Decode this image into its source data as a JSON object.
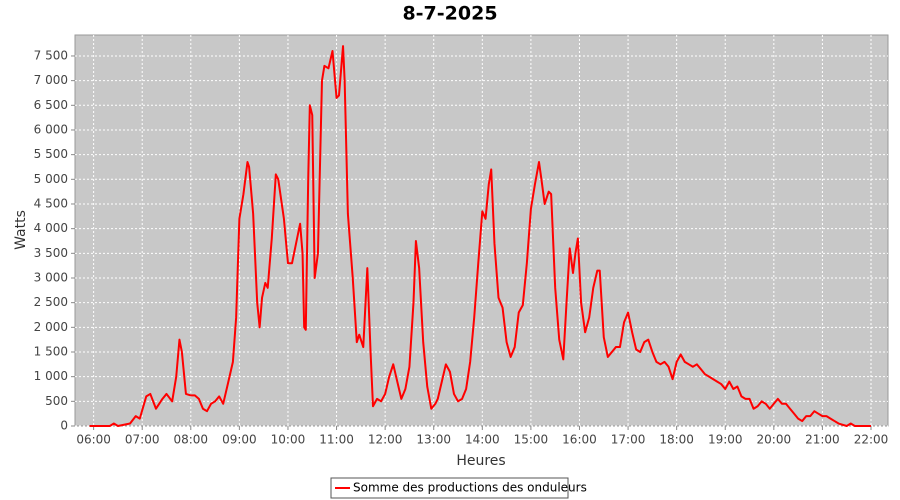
{
  "chart_data": {
    "type": "line",
    "title": "8-7-2025",
    "x_label": "Heures",
    "y_label": "Watts",
    "x": [
      "05:55",
      "06:20",
      "06:25",
      "06:30",
      "06:45",
      "06:52",
      "06:57",
      "07:05",
      "07:10",
      "07:17",
      "07:25",
      "07:30",
      "07:37",
      "07:42",
      "07:46",
      "07:49",
      "07:54",
      "08:00",
      "08:05",
      "08:10",
      "08:15",
      "08:20",
      "08:25",
      "08:30",
      "08:35",
      "08:40",
      "08:45",
      "08:52",
      "08:56",
      "09:00",
      "09:05",
      "09:10",
      "09:12",
      "09:17",
      "09:22",
      "09:25",
      "09:28",
      "09:32",
      "09:35",
      "09:40",
      "09:45",
      "09:48",
      "09:55",
      "10:00",
      "10:05",
      "10:10",
      "10:15",
      "10:18",
      "10:20",
      "10:22",
      "10:25",
      "10:27",
      "10:30",
      "10:33",
      "10:37",
      "10:42",
      "10:45",
      "10:50",
      "10:55",
      "11:00",
      "11:03",
      "11:06",
      "11:08",
      "11:10",
      "11:14",
      "11:20",
      "11:25",
      "11:28",
      "11:33",
      "11:38",
      "11:42",
      "11:45",
      "11:50",
      "11:55",
      "12:00",
      "12:05",
      "12:10",
      "12:15",
      "12:20",
      "12:25",
      "12:30",
      "12:35",
      "12:38",
      "12:42",
      "12:47",
      "12:52",
      "12:57",
      "13:02",
      "13:05",
      "13:10",
      "13:15",
      "13:20",
      "13:25",
      "13:30",
      "13:35",
      "13:40",
      "13:45",
      "13:50",
      "13:55",
      "14:00",
      "14:04",
      "14:08",
      "14:11",
      "14:15",
      "14:20",
      "14:25",
      "14:30",
      "14:35",
      "14:40",
      "14:45",
      "14:50",
      "14:55",
      "15:00",
      "15:05",
      "15:10",
      "15:13",
      "15:17",
      "15:22",
      "15:25",
      "15:30",
      "15:35",
      "15:40",
      "15:44",
      "15:48",
      "15:52",
      "15:55",
      "15:58",
      "16:02",
      "16:07",
      "16:12",
      "16:17",
      "16:22",
      "16:25",
      "16:30",
      "16:35",
      "16:40",
      "16:45",
      "16:50",
      "16:55",
      "17:00",
      "17:05",
      "17:10",
      "17:15",
      "17:20",
      "17:25",
      "17:30",
      "17:35",
      "17:40",
      "17:45",
      "17:50",
      "17:55",
      "18:00",
      "18:05",
      "18:10",
      "18:15",
      "18:20",
      "18:25",
      "18:30",
      "18:35",
      "18:40",
      "18:45",
      "18:50",
      "18:55",
      "19:00",
      "19:05",
      "19:10",
      "19:15",
      "19:20",
      "19:25",
      "19:30",
      "19:35",
      "19:40",
      "19:45",
      "19:50",
      "19:55",
      "20:00",
      "20:05",
      "20:10",
      "20:15",
      "20:20",
      "20:25",
      "20:30",
      "20:35",
      "20:40",
      "20:45",
      "20:50",
      "20:55",
      "21:00",
      "21:05",
      "21:10",
      "21:15",
      "21:20",
      "21:30",
      "21:35",
      "21:40",
      "22:00"
    ],
    "series": [
      {
        "name": "Somme des productions des onduleurs",
        "color": "#ff0000",
        "values": [
          0,
          0,
          50,
          0,
          50,
          200,
          150,
          600,
          650,
          350,
          550,
          650,
          500,
          1000,
          1750,
          1500,
          650,
          620,
          620,
          550,
          350,
          300,
          450,
          500,
          600,
          450,
          800,
          1300,
          2200,
          4200,
          4700,
          5350,
          5250,
          4300,
          2500,
          2000,
          2600,
          2900,
          2800,
          3800,
          5100,
          5000,
          4200,
          3300,
          3300,
          3700,
          4100,
          3500,
          2000,
          1950,
          5000,
          6500,
          6300,
          3000,
          3500,
          7000,
          7300,
          7250,
          7600,
          6650,
          6700,
          7300,
          7700,
          7000,
          4300,
          3000,
          1700,
          1850,
          1600,
          3200,
          1500,
          400,
          550,
          500,
          650,
          1000,
          1250,
          900,
          550,
          750,
          1200,
          2500,
          3750,
          3200,
          1700,
          800,
          350,
          450,
          550,
          900,
          1250,
          1100,
          650,
          500,
          550,
          750,
          1300,
          2200,
          3300,
          4350,
          4200,
          4900,
          5200,
          3700,
          2600,
          2400,
          1700,
          1400,
          1600,
          2300,
          2450,
          3300,
          4400,
          4900,
          5350,
          5000,
          4500,
          4750,
          4700,
          2800,
          1750,
          1350,
          2500,
          3600,
          3100,
          3500,
          3800,
          2500,
          1900,
          2200,
          2800,
          3150,
          3150,
          1800,
          1400,
          1500,
          1600,
          1600,
          2100,
          2300,
          1900,
          1550,
          1500,
          1700,
          1750,
          1500,
          1300,
          1250,
          1300,
          1200,
          950,
          1300,
          1450,
          1300,
          1250,
          1200,
          1250,
          1150,
          1050,
          1000,
          950,
          900,
          850,
          750,
          900,
          750,
          800,
          600,
          550,
          550,
          350,
          400,
          500,
          450,
          350,
          450,
          550,
          450,
          450,
          350,
          250,
          150,
          100,
          200,
          200,
          300,
          250,
          200,
          200,
          150,
          100,
          50,
          0,
          50,
          0,
          0
        ]
      }
    ],
    "xlim": [
      "05:37",
      "22:21"
    ],
    "xticks": [
      "06:00",
      "07:00",
      "08:00",
      "09:00",
      "10:00",
      "11:00",
      "12:00",
      "13:00",
      "14:00",
      "15:00",
      "16:00",
      "17:00",
      "18:00",
      "19:00",
      "20:00",
      "21:00",
      "22:00"
    ],
    "ylim": [
      0,
      7925
    ],
    "yticks": [
      0,
      500,
      {
        "value": 1000,
        "label": "1 000"
      },
      {
        "value": 1500,
        "label": "1 500"
      },
      {
        "value": 2000,
        "label": "2 000"
      },
      {
        "value": 2500,
        "label": "2 500"
      },
      {
        "value": 3000,
        "label": "3 000"
      },
      {
        "value": 3500,
        "label": "3 500"
      },
      {
        "value": 4000,
        "label": "4 000"
      },
      {
        "value": 4500,
        "label": "4 500"
      },
      {
        "value": 5000,
        "label": "5 000"
      },
      {
        "value": 5500,
        "label": "5 500"
      },
      {
        "value": 6000,
        "label": "6 000"
      },
      {
        "value": 6500,
        "label": "6 500"
      },
      {
        "value": 7000,
        "label": "7 000"
      },
      {
        "value": 7500,
        "label": "7 500"
      }
    ],
    "grid": true,
    "legend": "bottom"
  }
}
